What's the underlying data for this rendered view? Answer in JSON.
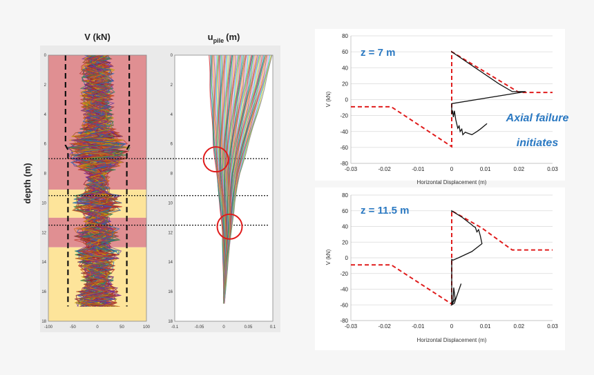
{
  "colors": {
    "background": "#f6f6f6",
    "red_zone": "#e08f92",
    "yellow_zone": "#fde49a",
    "dashed_envelope": "#111111",
    "model_curve": "#e01b1b",
    "response_curve": "#111111",
    "annotation_blue": "#2b79c2",
    "circle": "#e01b1b"
  },
  "chart_data": [
    {
      "type": "line",
      "title": "V (kN)",
      "ylabel": "depth (m)",
      "xlim": [
        -100,
        100
      ],
      "ylim": [
        18,
        0
      ],
      "x_ticks": [
        "-100",
        "-50",
        "0",
        "50",
        "100"
      ],
      "y_ticks": [
        "0",
        "2",
        "4",
        "6",
        "8",
        "10",
        "12",
        "14",
        "16",
        "18"
      ],
      "zones": [
        {
          "color": "red",
          "from_depth": 0,
          "to_depth": 9.1
        },
        {
          "color": "yellow",
          "from_depth": 9.1,
          "to_depth": 11.0
        },
        {
          "color": "red",
          "from_depth": 11.0,
          "to_depth": 13.0
        },
        {
          "color": "yellow",
          "from_depth": 13.0,
          "to_depth": 18
        }
      ],
      "envelope_left": [
        [
          -65,
          0
        ],
        [
          -65,
          6.1
        ],
        [
          -60,
          6.4
        ],
        [
          -60,
          17
        ]
      ],
      "envelope_right": [
        [
          65,
          0
        ],
        [
          65,
          6.1
        ],
        [
          60,
          6.4
        ],
        [
          60,
          17
        ]
      ],
      "reference_depths": [
        7,
        9.5,
        11.5
      ]
    },
    {
      "type": "line",
      "title": "u_pile (m)",
      "title_main": "u",
      "title_sub": "pile",
      "title_unit": "(m)",
      "xlim": [
        -0.1,
        0.1
      ],
      "ylim": [
        18,
        0
      ],
      "x_ticks": [
        "-0.1",
        "-0.05",
        "0",
        "0.05",
        "0.1"
      ],
      "y_ticks": [
        "0",
        "2",
        "4",
        "6",
        "8",
        "10",
        "12",
        "14",
        "16",
        "18"
      ],
      "spread_left": [
        [
          -0.03,
          0
        ],
        [
          -0.028,
          2
        ],
        [
          -0.025,
          4
        ],
        [
          -0.021,
          6
        ],
        [
          -0.015,
          8
        ],
        [
          -0.008,
          10
        ],
        [
          -0.003,
          12
        ],
        [
          -0.001,
          14
        ],
        [
          0,
          16
        ],
        [
          0,
          17
        ]
      ],
      "spread_right": [
        [
          0.098,
          0
        ],
        [
          0.085,
          2
        ],
        [
          0.068,
          4
        ],
        [
          0.05,
          6
        ],
        [
          0.033,
          8
        ],
        [
          0.022,
          10
        ],
        [
          0.015,
          12
        ],
        [
          0.008,
          14
        ],
        [
          0.003,
          16
        ],
        [
          0,
          17
        ]
      ],
      "highlight_depths": [
        7,
        11.5
      ]
    },
    {
      "type": "line",
      "annotation": "z = 7 m",
      "note_line1": "Axial failure",
      "note_line2": "initiates",
      "xlabel": "Horizontal Displacement (m)",
      "ylabel": "V (kN)",
      "xlim": [
        -0.03,
        0.03
      ],
      "ylim": [
        -80,
        80
      ],
      "x_ticks": [
        "-0.03",
        "-0.02",
        "-0.01",
        "0",
        "0.01",
        "0.02",
        "0.03"
      ],
      "y_ticks": [
        "-80",
        "-60",
        "-40",
        "-20",
        "0",
        "20",
        "40",
        "60",
        "80"
      ],
      "series": [
        {
          "style": "dashed",
          "x": [
            -0.03,
            -0.018,
            0,
            0,
            0.02,
            0.03
          ],
          "y": [
            -9,
            -9,
            -59,
            60,
            9,
            9
          ]
        },
        {
          "style": "solid",
          "x": [
            0,
            0,
            0.014,
            0.018,
            0.022,
            0,
            0,
            0.0003,
            0.0005,
            0.0008,
            0.0012,
            0.0018,
            0.0022,
            0.0025,
            0.003,
            0.0033,
            0.004,
            0.006,
            0.0075,
            0.0085,
            0.0105
          ],
          "y": [
            59,
            60,
            20,
            10,
            10,
            -5,
            -18,
            -15,
            -22,
            -14,
            -25,
            -36,
            -33,
            -40,
            -37,
            -44,
            -41,
            -44,
            -40,
            -37,
            -30
          ]
        }
      ]
    },
    {
      "type": "line",
      "annotation": "z = 11.5 m",
      "xlabel": "Horizontal Displacement (m)",
      "ylabel": "V (kN)",
      "xlim": [
        -0.03,
        0.03
      ],
      "ylim": [
        -80,
        80
      ],
      "x_ticks": [
        "-0.03",
        "-0.02",
        "-0.01",
        "0",
        "0.01",
        "0.02",
        "0.03"
      ],
      "y_ticks": [
        "-80",
        "-60",
        "-40",
        "-20",
        "0",
        "20",
        "40",
        "60",
        "80"
      ],
      "series": [
        {
          "style": "dashed",
          "x": [
            -0.03,
            -0.018,
            0,
            0,
            0.009,
            0.018,
            0.03
          ],
          "y": [
            -9,
            -9,
            -59,
            60,
            38,
            10,
            10
          ]
        },
        {
          "style": "solid",
          "x": [
            0,
            0,
            0.003,
            0.006,
            0.0065,
            0.007,
            0.0075,
            0.008,
            0.0085,
            0.009,
            0.006,
            0.002,
            0.0004,
            0,
            0,
            0.0004,
            0.0006,
            0.001,
            0,
            0.0008,
            0.0014,
            0.0028
          ],
          "y": [
            58,
            60,
            52,
            42,
            40,
            39,
            33,
            36,
            28,
            18,
            8,
            0,
            -3,
            -2,
            -58,
            -55,
            -38,
            -52,
            -60,
            -58,
            -50,
            -33
          ]
        }
      ]
    }
  ]
}
